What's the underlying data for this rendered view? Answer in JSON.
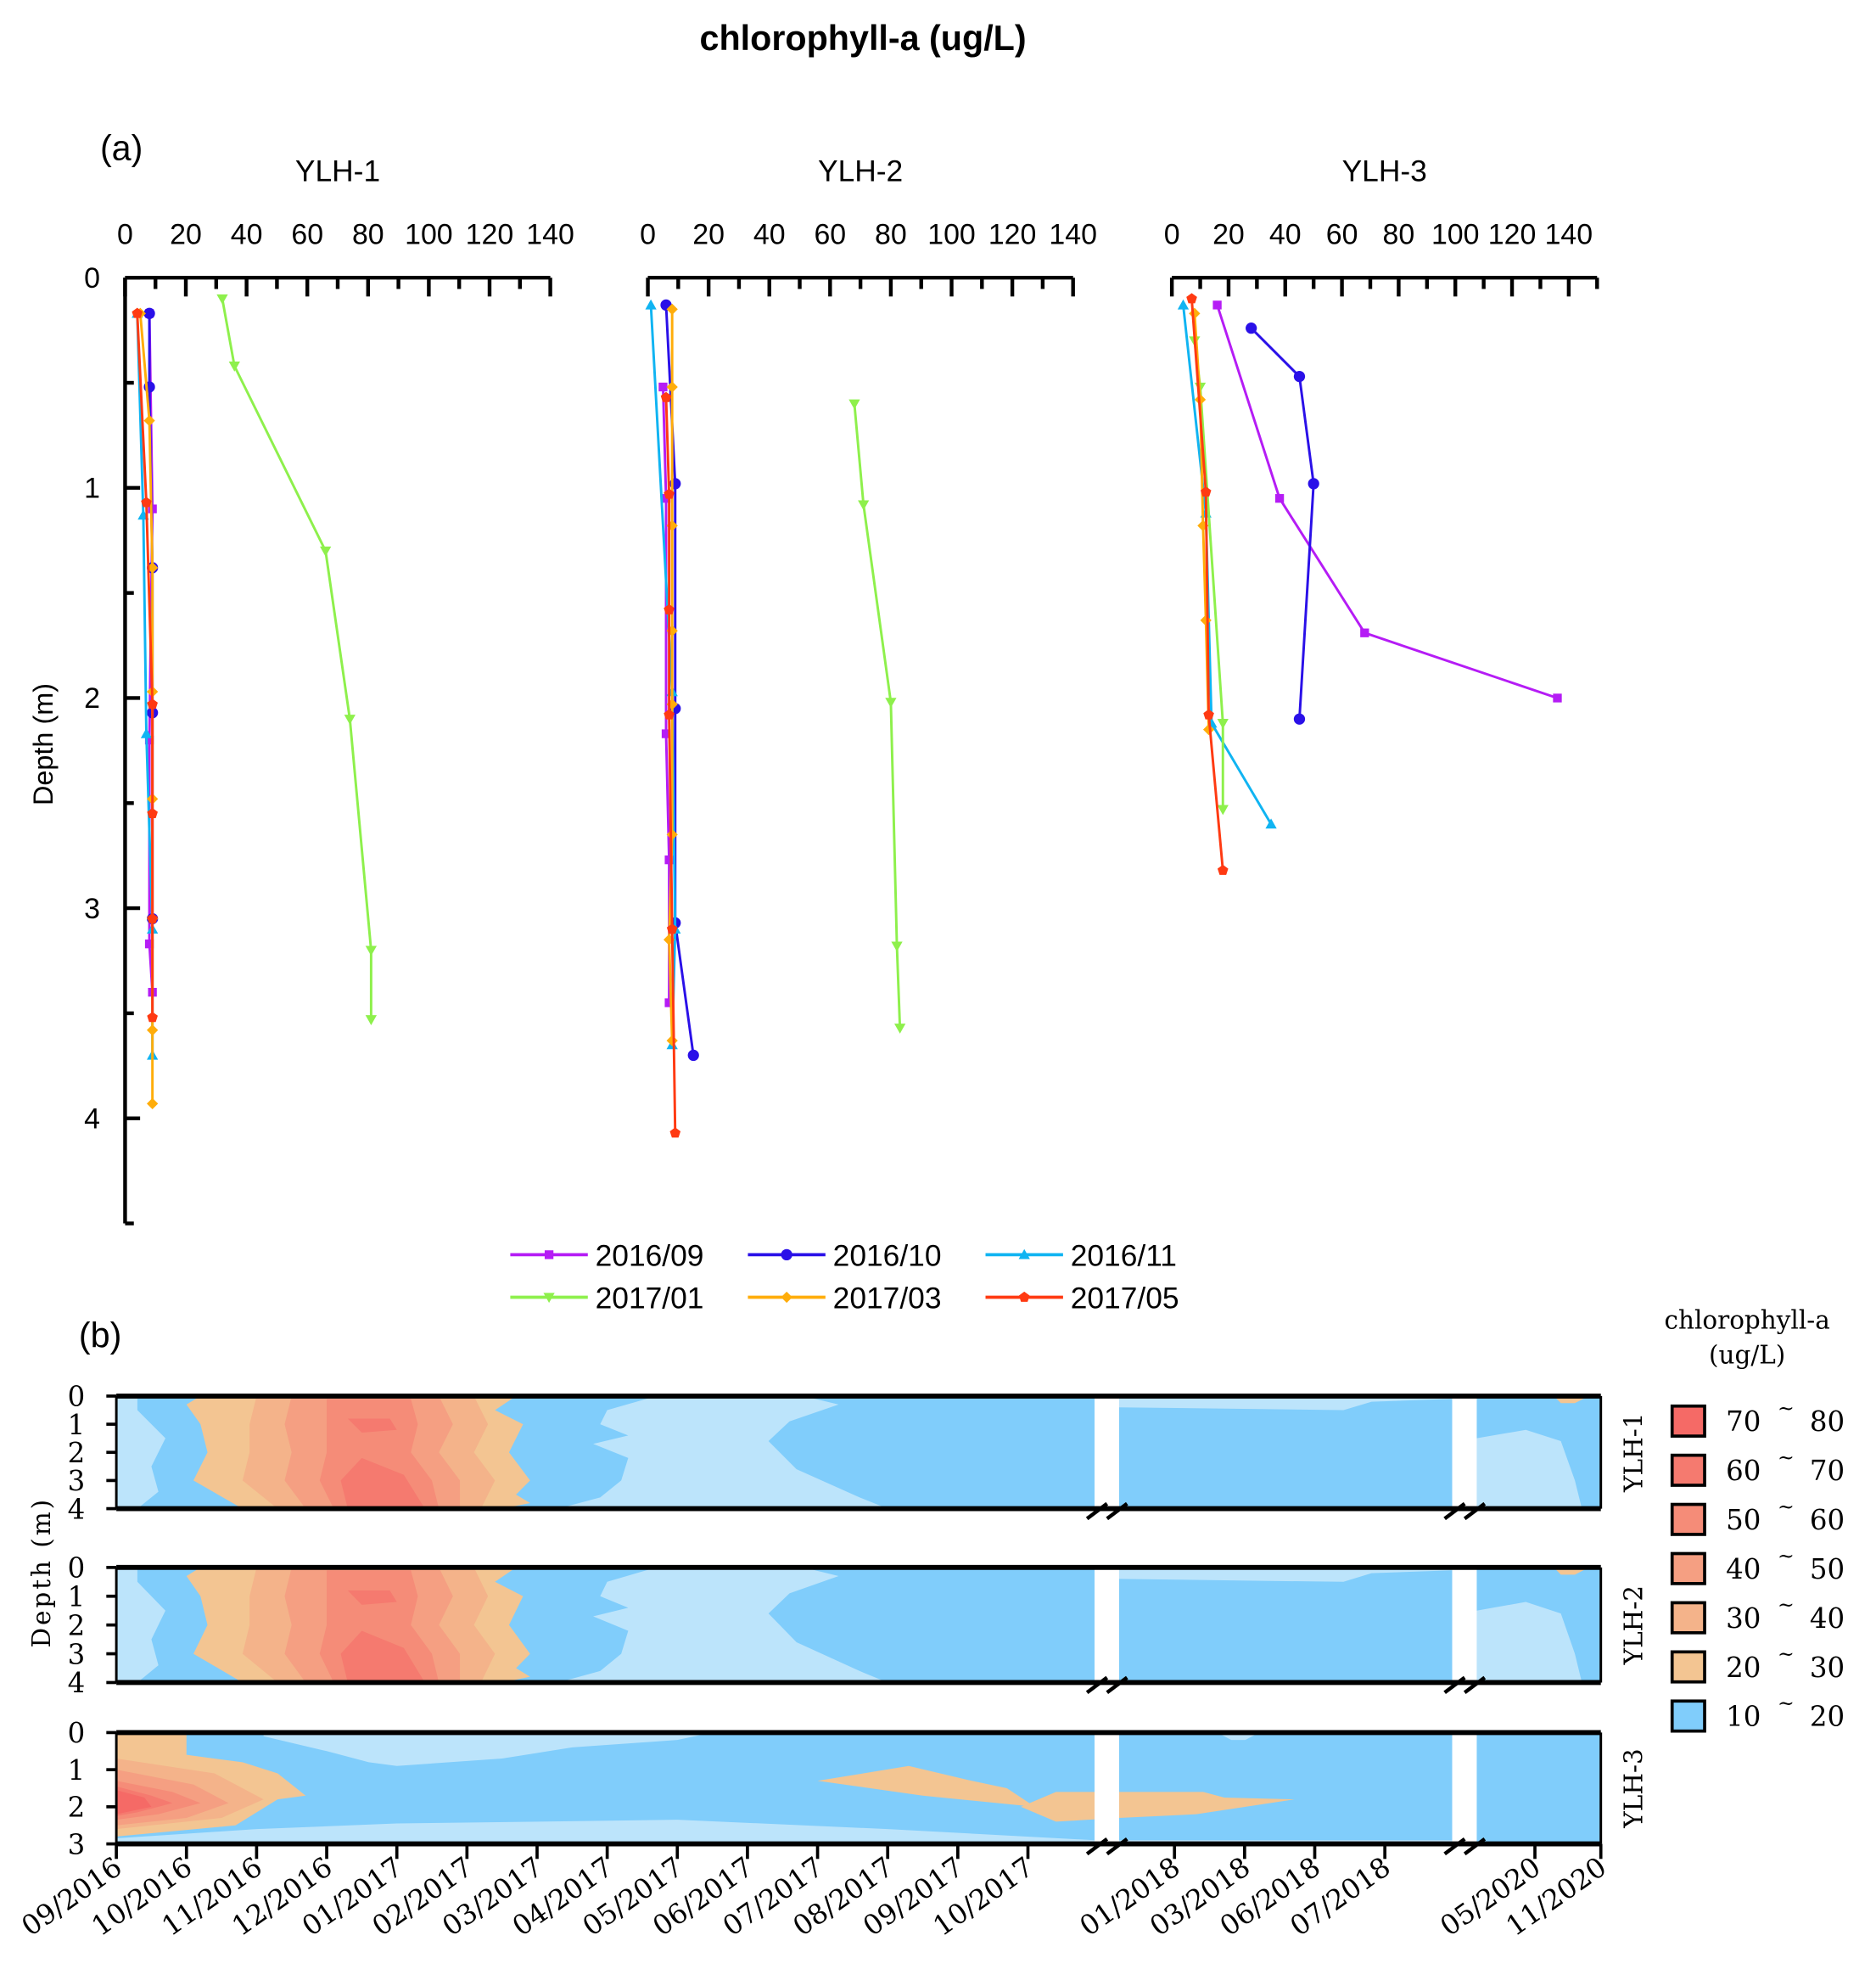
{
  "title": "chlorophyll-a (ug/L)",
  "chart_data": [
    {
      "panel": "(a)",
      "type": "line",
      "ylabel": "Depth (m)",
      "yticks": [
        "0",
        "1",
        "2",
        "3",
        "4"
      ],
      "ylim": [
        0,
        4.5
      ],
      "y_inverted": true,
      "legend": {
        "placement": "bottom-center"
      },
      "legend_entries": [
        "2016/09",
        "2016/10",
        "2016/11",
        "2017/01",
        "2017/03",
        "2017/05"
      ],
      "series_colors": {
        "2016/09": "#b51cf5",
        "2016/10": "#2a10e8",
        "2016/11": "#10b4f2",
        "2017/01": "#8ef04c",
        "2017/03": "#ffad0a",
        "2017/05": "#ff3a12"
      },
      "series_markers": {
        "2016/09": "square",
        "2016/10": "circle",
        "2016/11": "triangle-up",
        "2017/01": "triangle-down",
        "2017/03": "diamond",
        "2017/05": "pentagon"
      },
      "subplots": [
        {
          "title": "YLH-1",
          "xlim": [
            0,
            140
          ],
          "xticks": [
            "0",
            "20",
            "40",
            "60",
            "80",
            "100",
            "120",
            "140"
          ],
          "series": [
            {
              "name": "2016/09",
              "points": [
                [
                  8,
                  0.17
                ],
                [
                  9,
                  1.1
                ],
                [
                  8,
                  2.2
                ],
                [
                  8,
                  3.17
                ],
                [
                  9,
                  3.4
                ]
              ]
            },
            {
              "name": "2016/10",
              "points": [
                [
                  8,
                  0.17
                ],
                [
                  8,
                  0.52
                ],
                [
                  9,
                  1.38
                ],
                [
                  9,
                  2.07
                ],
                [
                  9,
                  3.05
                ]
              ]
            },
            {
              "name": "2016/11",
              "points": [
                [
                  4,
                  0.17
                ],
                [
                  6,
                  1.13
                ],
                [
                  7,
                  2.17
                ],
                [
                  9,
                  3.1
                ],
                [
                  9,
                  3.7
                ]
              ]
            },
            {
              "name": "2017/01",
              "points": [
                [
                  32,
                  0.1
                ],
                [
                  36,
                  0.42
                ],
                [
                  66,
                  1.3
                ],
                [
                  74,
                  2.1
                ],
                [
                  81,
                  3.2
                ],
                [
                  81,
                  3.53
                ]
              ]
            },
            {
              "name": "2017/03",
              "points": [
                [
                  5,
                  0.17
                ],
                [
                  8,
                  0.68
                ],
                [
                  9,
                  1.38
                ],
                [
                  9,
                  1.97
                ],
                [
                  9,
                  2.48
                ],
                [
                  9,
                  3.05
                ],
                [
                  9,
                  3.58
                ],
                [
                  9,
                  3.93
                ]
              ]
            },
            {
              "name": "2017/05",
              "points": [
                [
                  4,
                  0.17
                ],
                [
                  7,
                  1.07
                ],
                [
                  9,
                  2.03
                ],
                [
                  9,
                  2.55
                ],
                [
                  9,
                  3.05
                ],
                [
                  9,
                  3.52
                ]
              ]
            }
          ]
        },
        {
          "title": "YLH-2",
          "xlim": [
            0,
            140
          ],
          "xticks": [
            "0",
            "20",
            "40",
            "60",
            "80",
            "100",
            "120",
            "140"
          ],
          "series": [
            {
              "name": "2016/09",
              "points": [
                [
                  5,
                  0.52
                ],
                [
                  6,
                  1.05
                ],
                [
                  6,
                  2.17
                ],
                [
                  7,
                  2.77
                ],
                [
                  7,
                  3.45
                ]
              ]
            },
            {
              "name": "2016/10",
              "points": [
                [
                  6,
                  0.13
                ],
                [
                  9,
                  0.98
                ],
                [
                  9,
                  2.05
                ],
                [
                  9,
                  3.07
                ],
                [
                  15,
                  3.7
                ]
              ]
            },
            {
              "name": "2016/11",
              "points": [
                [
                  1,
                  0.13
                ],
                [
                  8,
                  1.97
                ],
                [
                  9,
                  3.1
                ],
                [
                  8,
                  3.65
                ]
              ]
            },
            {
              "name": "2017/01",
              "points": [
                [
                  68,
                  0.6
                ],
                [
                  71,
                  1.08
                ],
                [
                  80,
                  2.02
                ],
                [
                  82,
                  3.18
                ],
                [
                  83,
                  3.57
                ]
              ]
            },
            {
              "name": "2017/03",
              "points": [
                [
                  8,
                  0.15
                ],
                [
                  8,
                  0.52
                ],
                [
                  8,
                  1.18
                ],
                [
                  8,
                  1.68
                ],
                [
                  8,
                  2.03
                ],
                [
                  8,
                  2.65
                ],
                [
                  7,
                  3.15
                ],
                [
                  8,
                  3.63
                ]
              ]
            },
            {
              "name": "2017/05",
              "points": [
                [
                  6,
                  0.57
                ],
                [
                  7,
                  1.03
                ],
                [
                  7,
                  1.58
                ],
                [
                  7,
                  2.08
                ],
                [
                  8,
                  3.1
                ],
                [
                  9,
                  4.07
                ]
              ]
            }
          ]
        },
        {
          "title": "YLH-3",
          "xlim": [
            0,
            150
          ],
          "xticks": [
            "0",
            "20",
            "40",
            "60",
            "80",
            "100",
            "120",
            "140"
          ],
          "series": [
            {
              "name": "2016/09",
              "points": [
                [
                  16,
                  0.13
                ],
                [
                  38,
                  1.05
                ],
                [
                  68,
                  1.69
                ],
                [
                  136,
                  2.0
                ]
              ]
            },
            {
              "name": "2016/10",
              "points": [
                [
                  28,
                  0.24
                ],
                [
                  45,
                  0.47
                ],
                [
                  50,
                  0.98
                ],
                [
                  45,
                  2.1
                ]
              ]
            },
            {
              "name": "2016/11",
              "points": [
                [
                  4,
                  0.13
                ],
                [
                  12,
                  1.12
                ],
                [
                  14,
                  2.12
                ],
                [
                  35,
                  2.6
                ]
              ]
            },
            {
              "name": "2017/01",
              "points": [
                [
                  8,
                  0.3
                ],
                [
                  10,
                  0.52
                ],
                [
                  18,
                  2.12
                ],
                [
                  18,
                  2.53
                ]
              ]
            },
            {
              "name": "2017/03",
              "points": [
                [
                  8,
                  0.17
                ],
                [
                  10,
                  0.58
                ],
                [
                  11,
                  1.18
                ],
                [
                  12,
                  1.63
                ],
                [
                  13,
                  2.15
                ]
              ]
            },
            {
              "name": "2017/05",
              "points": [
                [
                  7,
                  0.1
                ],
                [
                  12,
                  1.02
                ],
                [
                  13,
                  2.08
                ],
                [
                  18,
                  2.82
                ]
              ]
            }
          ]
        }
      ]
    },
    {
      "panel": "(b)",
      "type": "heatmap",
      "ylabel": "Depth (m)",
      "xticks": [
        "09/2016",
        "10/2016",
        "11/2016",
        "12/2016",
        "01/2017",
        "02/2017",
        "03/2017",
        "04/2017",
        "05/2017",
        "06/2017",
        "07/2017",
        "08/2017",
        "09/2017",
        "10/2017",
        "01/2018",
        "03/2018",
        "06/2018",
        "07/2018",
        "05/2020",
        "11/2020"
      ],
      "axis_breaks": [
        "10/2017-01/2018",
        "07/2018-05/2020"
      ],
      "colorbar_title": [
        "chlorophyll-a",
        "(ug/L)"
      ],
      "colorbar": [
        {
          "low": "70",
          "high": "80",
          "color": "#f56a66"
        },
        {
          "low": "60",
          "high": "70",
          "color": "#f57a6f"
        },
        {
          "low": "50",
          "high": "60",
          "color": "#f58c78"
        },
        {
          "low": "40",
          "high": "50",
          "color": "#f59f82"
        },
        {
          "low": "30",
          "high": "40",
          "color": "#f4b38a"
        },
        {
          "low": "20",
          "high": "30",
          "color": "#f3c592"
        },
        {
          "low": "10",
          "high": "20",
          "color": "#80cdfb"
        }
      ],
      "range_separator": "~",
      "background_color_0_10": "#bce4fb",
      "strips": [
        {
          "site": "YLH-1",
          "yticks": [
            "0",
            "1",
            "2",
            "3",
            "4"
          ],
          "max_depth": 4
        },
        {
          "site": "YLH-2",
          "yticks": [
            "0",
            "1",
            "2",
            "3",
            "4"
          ],
          "max_depth": 4
        },
        {
          "site": "YLH-3",
          "yticks": [
            "0",
            "1",
            "2",
            "3"
          ],
          "max_depth": 3
        }
      ]
    }
  ]
}
